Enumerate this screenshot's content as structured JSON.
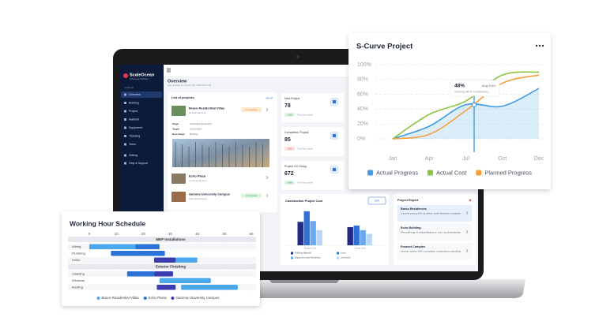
{
  "dashboard": {
    "sidebar": {
      "brand": "ScaleOcean",
      "tagline": "Construction Software",
      "section": "Contents",
      "nav": [
        "Overview",
        "Building",
        "Project",
        "Material",
        "Equipment",
        "Ticketing",
        "Team"
      ],
      "footer": [
        "Setting",
        "Help & Support"
      ]
    },
    "header": {
      "title": "Overview",
      "updated": "Last updated on October 08, 2024 09:10 AM"
    },
    "projects": {
      "title": "List of projects",
      "link": "see all",
      "items": [
        {
          "name": "Bravo Residential Villas",
          "location": "Residential area",
          "status": "In Progress",
          "details": [
            {
              "label": "Stage",
              "value": "Structural framework"
            },
            {
              "label": "Target",
              "value": "12/11/2024"
            },
            {
              "label": "Next Stage",
              "value": "Roofing"
            }
          ]
        },
        {
          "name": "Echo Plaza",
          "location": "Commercial area"
        },
        {
          "name": "Gamma University Campus",
          "location": "Educational area",
          "status": "Completed"
        }
      ]
    },
    "stats": [
      {
        "title": "New Project",
        "value": "78",
        "change": "+18%",
        "note": "Than last month"
      },
      {
        "title": "Completion Project",
        "value": "85",
        "change": "-5%",
        "note": "Than last month"
      },
      {
        "title": "Project On Going",
        "value": "672",
        "change": "+18%",
        "note": "Than last month"
      }
    ],
    "report": {
      "title": "Project Report",
      "items": [
        {
          "name": "Bravo Residences",
          "desc": "Concrete pouring 60% completed, tower framework in progress"
        },
        {
          "name": "Echo Building",
          "desc": "Roofing installation on schedule"
        },
        {
          "name": "Fourect Complex",
          "desc": "Interior works 45% complete, inspections pending"
        }
      ]
    }
  },
  "chart_data": [
    {
      "type": "line",
      "title": "S-Curve Project",
      "categories": [
        "Jan",
        "Apr",
        "Jul",
        "Oct",
        "Dec"
      ],
      "series": [
        {
          "name": "Actual Progress",
          "color": "#3f9be6",
          "values": [
            0,
            17,
            46,
            44,
            68
          ]
        },
        {
          "name": "Actual Cost",
          "color": "#8cc63f",
          "values": [
            0,
            33,
            51,
            86,
            90
          ]
        },
        {
          "name": "Planned Progress",
          "color": "#f5a03a",
          "values": [
            0,
            6,
            38,
            75,
            86
          ]
        }
      ],
      "ylim": [
        0,
        100
      ],
      "yticks": [
        {
          "value": 0,
          "label": "0%"
        },
        {
          "value": 20,
          "label": "20%"
        },
        {
          "value": 40,
          "label": "40%"
        },
        {
          "value": 60,
          "label": "60%"
        },
        {
          "value": 80,
          "label": "80%"
        },
        {
          "value": 100,
          "label": "100%"
        }
      ],
      "grid": true,
      "tooltip": {
        "value": "48%",
        "date": "Aug 2024",
        "note": "Starting MEP installations"
      }
    },
    {
      "type": "gantt",
      "title": "Working Hour Schedule",
      "xlim": [
        0,
        60
      ],
      "xticks": [
        0,
        10,
        20,
        30,
        40,
        50,
        60
      ],
      "groups": [
        {
          "name": "MEP Installations",
          "categories": [
            "Wiring",
            "Plumbing",
            "HVAC"
          ]
        },
        {
          "name": "Exterior Finishing",
          "categories": [
            "Cladding",
            "Windows",
            "Roofing"
          ]
        }
      ],
      "series": [
        {
          "name": "Bravo Residential Villas",
          "color": "#4aa8ec",
          "values": [
            [
              [
                0,
                17
              ],
              null,
              [
                32,
                40
              ]
            ],
            [
              null,
              [
                26,
                45
              ],
              [
                34,
                55
              ]
            ]
          ]
        },
        {
          "name": "Echo Plaza",
          "color": "#2b72d9",
          "values": [
            [
              [
                17,
                26
              ],
              [
                8,
                28
              ],
              null
            ],
            [
              [
                14,
                24
              ],
              null,
              null
            ]
          ]
        },
        {
          "name": "Gamma University Campus",
          "color": "#3a3db0",
          "values": [
            [
              null,
              null,
              [
                24,
                32
              ]
            ],
            [
              [
                24,
                31
              ],
              null,
              [
                25,
                32
              ]
            ]
          ]
        }
      ]
    },
    {
      "type": "bar",
      "title": "Construction Project Cost",
      "button": "Edit",
      "categories": [
        "Budget Cost",
        "Actual Cost"
      ],
      "series": [
        {
          "name": "Building Material",
          "color": "#1f2a80",
          "values": [
            62,
            48
          ]
        },
        {
          "name": "Labor",
          "color": "#2f6fd6",
          "values": [
            90,
            52
          ]
        },
        {
          "name": "Equipment and Machinery",
          "color": "#6aa9ef",
          "values": [
            64,
            40
          ]
        },
        {
          "name": "Overhead",
          "color": "#b9d6f8",
          "values": [
            40,
            30
          ]
        }
      ],
      "ylim": [
        0,
        100
      ]
    }
  ]
}
